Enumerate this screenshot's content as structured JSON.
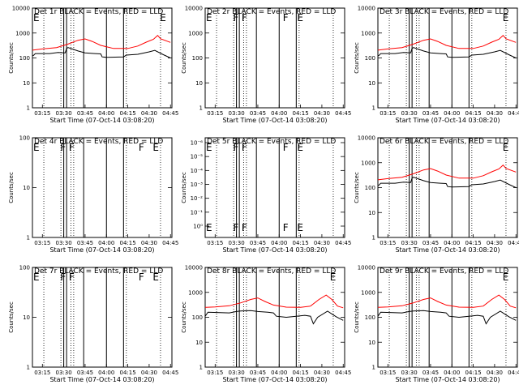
{
  "figure": {
    "x_ticks": [
      "03:15",
      "03:30",
      "03:45",
      "04:00",
      "04:15",
      "04:30",
      "04:45"
    ],
    "x_label": "Start Time (07-Oct-14 03:08:20)",
    "y_label": "Counts/sec"
  },
  "chart_data": [
    {
      "id": "det1",
      "type": "line",
      "title": "Det 1r  BLACK = Events, RED = LLD",
      "ytype": "log4",
      "yticks": [
        "1",
        "10",
        "100",
        "1000",
        "10000"
      ],
      "ylim": [
        1,
        10000
      ],
      "has_data": true,
      "annotations": [
        {
          "text": "E",
          "x": "03:08"
        },
        {
          "text": "E",
          "x": "04:37"
        }
      ],
      "series": [
        {
          "name": "Events",
          "color": "#000000",
          "profile": "black_std"
        },
        {
          "name": "LLD",
          "color": "#ff0000",
          "profile": "red_std"
        }
      ]
    },
    {
      "id": "det2",
      "type": "line",
      "title": "Det 2r  BLACK = Events, RED = LLD",
      "ytype": "log4",
      "yticks": [
        "1",
        "10",
        "100",
        "1000",
        "10000"
      ],
      "ylim": [
        1,
        10000
      ],
      "has_data": false,
      "annotations": [
        {
          "text": "E",
          "x": "03:08"
        },
        {
          "text": "F",
          "x": "03:27"
        },
        {
          "text": "F",
          "x": "03:33"
        },
        {
          "text": "F",
          "x": "04:02"
        },
        {
          "text": "E",
          "x": "04:12"
        }
      ],
      "series": []
    },
    {
      "id": "det3",
      "type": "line",
      "title": "Det 3r  BLACK = Events, RED = LLD",
      "ytype": "log4",
      "yticks": [
        "1",
        "10",
        "100",
        "1000",
        "10000"
      ],
      "ylim": [
        1,
        10000
      ],
      "has_data": true,
      "annotations": [
        {
          "text": "E",
          "x": "04:35"
        }
      ],
      "series": [
        {
          "name": "Events",
          "color": "#000000",
          "profile": "black_std"
        },
        {
          "name": "LLD",
          "color": "#ff0000",
          "profile": "red_std"
        }
      ]
    },
    {
      "id": "det4",
      "type": "line",
      "title": "Det 4r  BLACK = Events, RED = LLD",
      "ytype": "log2",
      "yticks": [
        "1",
        "10",
        "100"
      ],
      "ylim": [
        1,
        100
      ],
      "has_data": false,
      "annotations": [
        {
          "text": "E",
          "x": "03:08"
        },
        {
          "text": "F",
          "x": "03:27"
        },
        {
          "text": "F",
          "x": "03:33"
        },
        {
          "text": "F",
          "x": "04:22"
        },
        {
          "text": "E",
          "x": "04:32"
        }
      ],
      "series": []
    },
    {
      "id": "det5",
      "type": "line",
      "title": "Det 5r  BLACK = Events, RED = LLD",
      "ytype": "tiny",
      "yticks": [
        "10⁰",
        "10⁻¹",
        "10⁻²",
        "10⁻³",
        "10⁻⁴",
        "10⁻⁵",
        "10⁻⁶"
      ],
      "ylim": [
        0,
        6
      ],
      "has_data": false,
      "annotations": [
        {
          "text": "E",
          "x": "03:08"
        },
        {
          "text": "F",
          "x": "03:27"
        },
        {
          "text": "F",
          "x": "03:33"
        },
        {
          "text": "F",
          "x": "04:02"
        },
        {
          "text": "E",
          "x": "04:12"
        }
      ],
      "series": []
    },
    {
      "id": "det6",
      "type": "line",
      "title": "Det 6r  BLACK = Events, RED = LLD",
      "ytype": "log4",
      "yticks": [
        "1",
        "10",
        "100",
        "1000",
        "10000"
      ],
      "ylim": [
        1,
        10000
      ],
      "has_data": true,
      "annotations": [
        {
          "text": "E",
          "x": "04:35"
        }
      ],
      "series": [
        {
          "name": "Events",
          "color": "#000000",
          "profile": "black_std"
        },
        {
          "name": "LLD",
          "color": "#ff0000",
          "profile": "red_std"
        }
      ]
    },
    {
      "id": "det7",
      "type": "line",
      "title": "Det 7r  BLACK = Events, RED = LLD",
      "ytype": "log2",
      "yticks": [
        "1",
        "10",
        "100"
      ],
      "ylim": [
        1,
        100
      ],
      "has_data": false,
      "annotations": [
        {
          "text": "E",
          "x": "03:08"
        },
        {
          "text": "F",
          "x": "03:27"
        },
        {
          "text": "F",
          "x": "03:33"
        },
        {
          "text": "F",
          "x": "04:22"
        },
        {
          "text": "E",
          "x": "04:32"
        }
      ],
      "series": []
    },
    {
      "id": "det8",
      "type": "line",
      "title": "Det 8r  BLACK = Events, RED = LLD",
      "ytype": "log4",
      "yticks": [
        "1",
        "10",
        "100",
        "1000",
        "10000"
      ],
      "ylim": [
        1,
        10000
      ],
      "has_data": true,
      "annotations": [
        {
          "text": "E",
          "x": "04:35"
        }
      ],
      "series": [
        {
          "name": "Events",
          "color": "#000000",
          "profile": "black_alt"
        },
        {
          "name": "LLD",
          "color": "#ff0000",
          "profile": "red_alt"
        }
      ]
    },
    {
      "id": "det9",
      "type": "line",
      "title": "Det 9r  BLACK = Events, RED = LLD",
      "ytype": "log4",
      "yticks": [
        "1",
        "10",
        "100",
        "1000",
        "10000"
      ],
      "ylim": [
        1,
        10000
      ],
      "has_data": true,
      "annotations": [
        {
          "text": "E",
          "x": "04:35"
        }
      ],
      "series": [
        {
          "name": "Events",
          "color": "#000000",
          "profile": "black_alt"
        },
        {
          "name": "LLD",
          "color": "#ff0000",
          "profile": "red_alt"
        }
      ]
    }
  ],
  "profiles": {
    "black_std": [
      [
        "03:08",
        120
      ],
      [
        "03:09",
        130
      ],
      [
        "03:10",
        150
      ],
      [
        "03:20",
        150
      ],
      [
        "03:26",
        165
      ],
      [
        "03:31",
        160
      ],
      [
        "03:32",
        240
      ],
      [
        "03:33",
        260
      ],
      [
        "03:40",
        190
      ],
      [
        "03:45",
        160
      ],
      [
        "03:52",
        150
      ],
      [
        "03:56",
        145
      ],
      [
        "03:57",
        110
      ],
      [
        "04:00",
        105
      ],
      [
        "04:12",
        110
      ],
      [
        "04:14",
        130
      ],
      [
        "04:22",
        140
      ],
      [
        "04:30",
        175
      ],
      [
        "04:34",
        200
      ],
      [
        "04:40",
        135
      ],
      [
        "04:45",
        100
      ]
    ],
    "red_std": [
      [
        "03:08",
        205
      ],
      [
        "03:15",
        230
      ],
      [
        "03:25",
        260
      ],
      [
        "03:33",
        360
      ],
      [
        "03:40",
        510
      ],
      [
        "03:45",
        580
      ],
      [
        "03:50",
        460
      ],
      [
        "03:56",
        320
      ],
      [
        "04:05",
        240
      ],
      [
        "04:15",
        240
      ],
      [
        "04:22",
        300
      ],
      [
        "04:28",
        430
      ],
      [
        "04:33",
        560
      ],
      [
        "04:36",
        800
      ],
      [
        "04:38",
        590
      ],
      [
        "04:45",
        420
      ]
    ],
    "black_alt": [
      [
        "03:08",
        110
      ],
      [
        "03:10",
        160
      ],
      [
        "03:25",
        150
      ],
      [
        "03:30",
        170
      ],
      [
        "03:33",
        180
      ],
      [
        "03:40",
        185
      ],
      [
        "03:45",
        170
      ],
      [
        "03:52",
        160
      ],
      [
        "03:56",
        150
      ],
      [
        "03:58",
        110
      ],
      [
        "04:05",
        100
      ],
      [
        "04:12",
        110
      ],
      [
        "04:18",
        120
      ],
      [
        "04:22",
        110
      ],
      [
        "04:24",
        55
      ],
      [
        "04:27",
        100
      ],
      [
        "04:34",
        175
      ],
      [
        "04:40",
        105
      ],
      [
        "04:45",
        75
      ]
    ],
    "red_alt": [
      [
        "03:08",
        250
      ],
      [
        "03:15",
        260
      ],
      [
        "03:25",
        290
      ],
      [
        "03:33",
        380
      ],
      [
        "03:40",
        520
      ],
      [
        "03:45",
        600
      ],
      [
        "03:50",
        430
      ],
      [
        "03:56",
        310
      ],
      [
        "04:05",
        255
      ],
      [
        "04:15",
        250
      ],
      [
        "04:22",
        280
      ],
      [
        "04:28",
        520
      ],
      [
        "04:33",
        780
      ],
      [
        "04:37",
        520
      ],
      [
        "04:41",
        280
      ],
      [
        "04:45",
        240
      ]
    ]
  },
  "vertical_markers": {
    "solid": [
      "03:30",
      "03:32",
      "03:44",
      "04:00",
      "04:12"
    ],
    "dotted": [
      "03:16",
      "03:28",
      "03:35",
      "03:37",
      "04:14",
      "04:38",
      "04:46"
    ]
  }
}
